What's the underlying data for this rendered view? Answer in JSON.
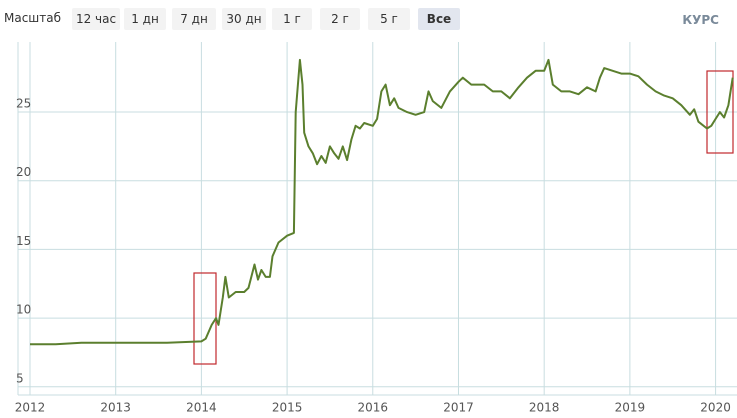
{
  "toolbar": {
    "label": "Масштаб",
    "buttons": [
      "12 час",
      "1 дн",
      "7 дн",
      "30 дн",
      "1 г",
      "2 г",
      "5 г",
      "Все"
    ],
    "logo": "КУРС"
  },
  "chart_data": {
    "type": "line",
    "color": "#5b7f2e",
    "grid": true,
    "x": [
      2012.0,
      2012.3,
      2012.6,
      2013.0,
      2013.3,
      2013.6,
      2014.0,
      2014.05,
      2014.12,
      2014.17,
      2014.2,
      2014.25,
      2014.28,
      2014.32,
      2014.4,
      2014.5,
      2014.55,
      2014.62,
      2014.66,
      2014.7,
      2014.75,
      2014.8,
      2014.83,
      2014.9,
      2015.0,
      2015.08,
      2015.1,
      2015.15,
      2015.18,
      2015.2,
      2015.25,
      2015.3,
      2015.35,
      2015.4,
      2015.45,
      2015.5,
      2015.55,
      2015.6,
      2015.65,
      2015.7,
      2015.75,
      2015.8,
      2015.85,
      2015.9,
      2016.0,
      2016.05,
      2016.1,
      2016.15,
      2016.2,
      2016.25,
      2016.3,
      2016.4,
      2016.5,
      2016.6,
      2016.65,
      2016.7,
      2016.8,
      2016.9,
      2017.0,
      2017.05,
      2017.15,
      2017.3,
      2017.4,
      2017.5,
      2017.6,
      2017.7,
      2017.8,
      2017.9,
      2018.0,
      2018.05,
      2018.1,
      2018.2,
      2018.3,
      2018.4,
      2018.5,
      2018.6,
      2018.65,
      2018.7,
      2018.8,
      2018.9,
      2019.0,
      2019.1,
      2019.2,
      2019.3,
      2019.4,
      2019.5,
      2019.6,
      2019.7,
      2019.75,
      2019.8,
      2019.9,
      2019.95,
      2020.0,
      2020.05,
      2020.1,
      2020.15,
      2020.2
    ],
    "values": [
      8.1,
      8.1,
      8.2,
      8.2,
      8.2,
      8.2,
      8.3,
      8.5,
      9.5,
      10.0,
      9.5,
      11.5,
      13.0,
      11.5,
      11.9,
      11.9,
      12.2,
      13.9,
      12.8,
      13.5,
      13.0,
      13.0,
      14.5,
      15.5,
      16.0,
      16.2,
      25.0,
      28.8,
      27.0,
      23.5,
      22.5,
      22.0,
      21.2,
      21.8,
      21.3,
      22.5,
      22.0,
      21.6,
      22.5,
      21.5,
      23.0,
      24.0,
      23.8,
      24.2,
      24.0,
      24.5,
      26.5,
      27.0,
      25.5,
      26.0,
      25.3,
      25.0,
      24.8,
      25.0,
      26.5,
      25.8,
      25.3,
      26.5,
      27.2,
      27.5,
      27.0,
      27.0,
      26.5,
      26.5,
      26.0,
      26.8,
      27.5,
      28.0,
      28.0,
      28.8,
      27.0,
      26.5,
      26.5,
      26.3,
      26.8,
      26.5,
      27.5,
      28.2,
      28.0,
      27.8,
      27.8,
      27.6,
      27.0,
      26.5,
      26.2,
      26.0,
      25.5,
      24.8,
      25.2,
      24.3,
      23.8,
      24.0,
      24.5,
      25.0,
      24.6,
      25.5,
      27.5
    ],
    "xlim": [
      2011.86,
      2020.25
    ],
    "xticks": [
      2012,
      2013,
      2014,
      2015,
      2016,
      2017,
      2018,
      2019,
      2020
    ],
    "ylim": [
      4.4,
      30.1
    ],
    "yticks": [
      5,
      10,
      15,
      20,
      25
    ]
  }
}
